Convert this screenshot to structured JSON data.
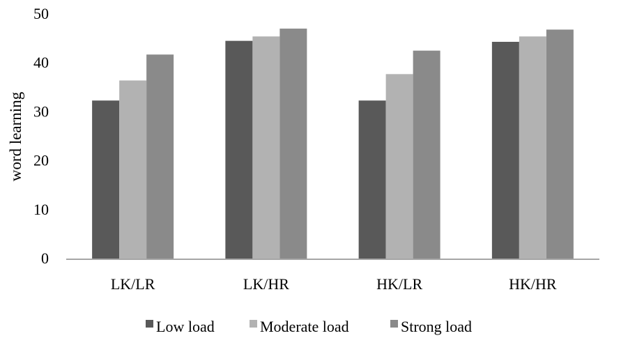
{
  "chart_data": {
    "type": "bar",
    "categories": [
      "LK/LR",
      "LK/HR",
      "HK/LR",
      "HK/HR"
    ],
    "series": [
      {
        "name": "Low load",
        "values": [
          32.3,
          44.5,
          32.3,
          44.3
        ],
        "color": "#595959"
      },
      {
        "name": "Moderate load",
        "values": [
          36.4,
          45.4,
          37.7,
          45.4
        ],
        "color": "#b2b2b2"
      },
      {
        "name": "Strong load",
        "values": [
          41.7,
          47.0,
          42.5,
          46.8
        ],
        "color": "#8a8a8a"
      }
    ],
    "title": "",
    "xlabel": "",
    "ylabel": "word learning",
    "ylim": [
      0,
      50
    ],
    "yticks": [
      "0",
      "10",
      "20",
      "30",
      "40",
      "50"
    ],
    "grid": false,
    "legend_position": "bottom",
    "axis_color": "#a6a6a6"
  }
}
